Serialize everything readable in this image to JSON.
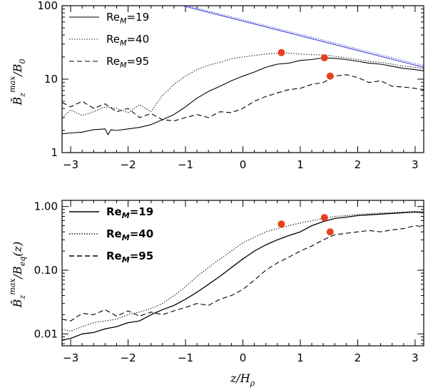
{
  "chart_data": [
    {
      "type": "line",
      "panel": "top",
      "ylabel": "B̄_z^max / B_0",
      "yscale": "log",
      "xlim": [
        -3.15,
        3.15
      ],
      "ylim": [
        1,
        100
      ],
      "xticks": [
        -3,
        -2,
        -1,
        0,
        1,
        2,
        3
      ],
      "xtick_labels": [
        "−3",
        "−2",
        "−1",
        "0",
        "1",
        "2",
        "3"
      ],
      "yticks": [
        1,
        10,
        100
      ],
      "ytick_labels": [
        "1",
        "10",
        "100"
      ],
      "legend": {
        "position": "top-left",
        "entries": [
          "Re_M=19",
          "Re_M=40",
          "Re_M=95"
        ]
      },
      "series": [
        {
          "name": "Re_M=19",
          "style": "solid",
          "x": [
            -3.15,
            -3.0,
            -2.8,
            -2.6,
            -2.4,
            -2.35,
            -2.3,
            -2.2,
            -2.0,
            -1.8,
            -1.6,
            -1.4,
            -1.2,
            -1.0,
            -0.8,
            -0.6,
            -0.4,
            -0.2,
            0.0,
            0.2,
            0.4,
            0.6,
            0.8,
            1.0,
            1.2,
            1.4,
            1.6,
            1.8,
            2.0,
            2.2,
            2.4,
            2.6,
            2.8,
            3.0,
            3.15
          ],
          "y": [
            1.8,
            1.85,
            1.9,
            2.05,
            2.1,
            1.75,
            2.05,
            2.0,
            2.1,
            2.2,
            2.4,
            2.8,
            3.3,
            4.2,
            5.5,
            6.8,
            8.0,
            9.5,
            11.0,
            12.5,
            14.5,
            16.0,
            16.5,
            18.0,
            18.5,
            19.5,
            19.2,
            18.5,
            17.5,
            16.5,
            16.0,
            15.0,
            14.0,
            13.5,
            13.0
          ]
        },
        {
          "name": "Re_M=40",
          "style": "dotted",
          "x": [
            -3.15,
            -3.0,
            -2.8,
            -2.6,
            -2.4,
            -2.2,
            -2.0,
            -1.8,
            -1.6,
            -1.4,
            -1.2,
            -1.0,
            -0.8,
            -0.6,
            -0.4,
            -0.2,
            0.0,
            0.2,
            0.4,
            0.6,
            0.7,
            0.8,
            1.0,
            1.2,
            1.4,
            1.6,
            1.8,
            2.0,
            2.2,
            2.4,
            2.6,
            2.8,
            3.0,
            3.15
          ],
          "y": [
            3.0,
            3.8,
            3.2,
            3.6,
            4.2,
            4.0,
            3.5,
            4.5,
            3.6,
            6.0,
            8.5,
            11.0,
            13.5,
            15.5,
            17.0,
            19.0,
            20.0,
            21.0,
            22.0,
            22.5,
            23.0,
            22.5,
            22.0,
            21.5,
            21.5,
            20.5,
            19.5,
            18.5,
            17.5,
            17.0,
            16.0,
            15.0,
            14.5,
            14.0
          ]
        },
        {
          "name": "Re_M=95",
          "style": "dashed",
          "x": [
            -3.15,
            -3.0,
            -2.8,
            -2.6,
            -2.4,
            -2.2,
            -2.0,
            -1.8,
            -1.6,
            -1.4,
            -1.2,
            -1.0,
            -0.8,
            -0.6,
            -0.4,
            -0.2,
            0.0,
            0.2,
            0.4,
            0.6,
            0.8,
            1.0,
            1.2,
            1.4,
            1.6,
            1.8,
            2.0,
            2.2,
            2.4,
            2.6,
            2.8,
            3.0,
            3.15
          ],
          "y": [
            4.8,
            4.2,
            5.0,
            4.0,
            4.6,
            3.6,
            4.0,
            3.0,
            3.4,
            2.8,
            2.7,
            3.0,
            3.3,
            3.0,
            3.6,
            3.5,
            4.0,
            5.0,
            5.8,
            6.5,
            7.2,
            7.5,
            8.5,
            9.0,
            11.0,
            11.5,
            10.5,
            9.0,
            9.5,
            8.0,
            7.8,
            7.5,
            7.2
          ]
        },
        {
          "name": "reference-blue",
          "style": "solid",
          "color": "#3a3adc",
          "x": [
            -1.05,
            3.15
          ],
          "y": [
            100,
            14.5
          ]
        },
        {
          "name": "reference-blue-dotted",
          "style": "dotted",
          "color": "#3a3adc",
          "x": [
            -1.05,
            3.15
          ],
          "y": [
            104,
            15.3
          ]
        }
      ],
      "markers": {
        "color": "#e8401c",
        "x": [
          0.67,
          1.42,
          1.52
        ],
        "y": [
          23.0,
          19.5,
          11.0
        ]
      }
    },
    {
      "type": "line",
      "panel": "bottom",
      "xlabel": "z/H_ρ",
      "ylabel": "B̄_z^max / B_eq(z)",
      "yscale": "log",
      "xlim": [
        -3.15,
        3.15
      ],
      "ylim": [
        0.0065,
        1.25
      ],
      "xticks": [
        -3,
        -2,
        -1,
        0,
        1,
        2,
        3
      ],
      "xtick_labels": [
        "−3",
        "−2",
        "−1",
        "0",
        "1",
        "2",
        "3"
      ],
      "yticks": [
        0.01,
        0.1,
        1.0
      ],
      "ytick_labels": [
        "0.01",
        "0.10",
        "1.00"
      ],
      "legend": {
        "position": "top-left",
        "entries": [
          "Re_M=19",
          "Re_M=40",
          "Re_M=95"
        ]
      },
      "series": [
        {
          "name": "Re_M=19",
          "style": "solid",
          "x": [
            -3.15,
            -3.0,
            -2.8,
            -2.6,
            -2.4,
            -2.2,
            -2.0,
            -1.8,
            -1.6,
            -1.4,
            -1.2,
            -1.0,
            -0.8,
            -0.6,
            -0.4,
            -0.2,
            0.0,
            0.2,
            0.4,
            0.6,
            0.8,
            1.0,
            1.2,
            1.4,
            1.6,
            1.8,
            2.0,
            2.2,
            2.4,
            2.6,
            2.8,
            3.0,
            3.15
          ],
          "y": [
            0.008,
            0.0085,
            0.01,
            0.0105,
            0.012,
            0.013,
            0.015,
            0.016,
            0.02,
            0.024,
            0.028,
            0.035,
            0.045,
            0.06,
            0.08,
            0.11,
            0.15,
            0.2,
            0.25,
            0.3,
            0.35,
            0.4,
            0.5,
            0.58,
            0.65,
            0.68,
            0.72,
            0.74,
            0.76,
            0.78,
            0.8,
            0.82,
            0.8
          ]
        },
        {
          "name": "Re_M=40",
          "style": "dotted",
          "x": [
            -3.15,
            -3.0,
            -2.8,
            -2.6,
            -2.4,
            -2.2,
            -2.0,
            -1.8,
            -1.6,
            -1.4,
            -1.2,
            -1.0,
            -0.8,
            -0.6,
            -0.4,
            -0.2,
            0.0,
            0.2,
            0.4,
            0.6,
            0.8,
            1.0,
            1.2,
            1.4,
            1.6,
            1.8,
            2.0,
            2.2,
            2.4,
            2.6,
            2.8,
            3.0,
            3.15
          ],
          "y": [
            0.012,
            0.011,
            0.013,
            0.015,
            0.016,
            0.017,
            0.02,
            0.022,
            0.025,
            0.03,
            0.04,
            0.055,
            0.08,
            0.11,
            0.15,
            0.2,
            0.27,
            0.33,
            0.4,
            0.45,
            0.5,
            0.55,
            0.6,
            0.65,
            0.7,
            0.72,
            0.75,
            0.77,
            0.79,
            0.8,
            0.82,
            0.84,
            0.83
          ]
        },
        {
          "name": "Re_M=95",
          "style": "dashed",
          "x": [
            -3.15,
            -3.0,
            -2.8,
            -2.6,
            -2.4,
            -2.2,
            -2.0,
            -1.8,
            -1.6,
            -1.4,
            -1.2,
            -1.0,
            -0.8,
            -0.6,
            -0.4,
            -0.2,
            0.0,
            0.2,
            0.4,
            0.6,
            0.8,
            1.0,
            1.2,
            1.4,
            1.6,
            1.8,
            2.0,
            2.2,
            2.4,
            2.6,
            2.8,
            3.0,
            3.15
          ],
          "y": [
            0.017,
            0.016,
            0.021,
            0.02,
            0.024,
            0.019,
            0.023,
            0.019,
            0.022,
            0.02,
            0.023,
            0.026,
            0.03,
            0.028,
            0.035,
            0.04,
            0.05,
            0.07,
            0.1,
            0.13,
            0.16,
            0.2,
            0.24,
            0.3,
            0.36,
            0.38,
            0.4,
            0.42,
            0.4,
            0.43,
            0.45,
            0.5,
            0.48
          ]
        }
      ],
      "markers": {
        "color": "#e8401c",
        "x": [
          0.67,
          1.42,
          1.52
        ],
        "y": [
          0.53,
          0.67,
          0.4
        ]
      }
    }
  ],
  "legend_labels": [
    {
      "prefix": "Re",
      "sub": "M",
      "suffix": "=19"
    },
    {
      "prefix": "Re",
      "sub": "M",
      "suffix": "=40"
    },
    {
      "prefix": "Re",
      "sub": "M",
      "suffix": "=95"
    }
  ],
  "axis_text": {
    "top_ylabel": {
      "base": "B̄",
      "sub": "z",
      "sup": "max",
      "rest": "/B",
      "rest_sub": "0"
    },
    "bottom_ylabel": {
      "base": "B̄",
      "sub": "z",
      "sup": "max",
      "rest": "/B",
      "rest_sub": "eq",
      "tail": "(z)"
    },
    "xlabel": {
      "base": "z/H",
      "sub": "ρ"
    }
  }
}
